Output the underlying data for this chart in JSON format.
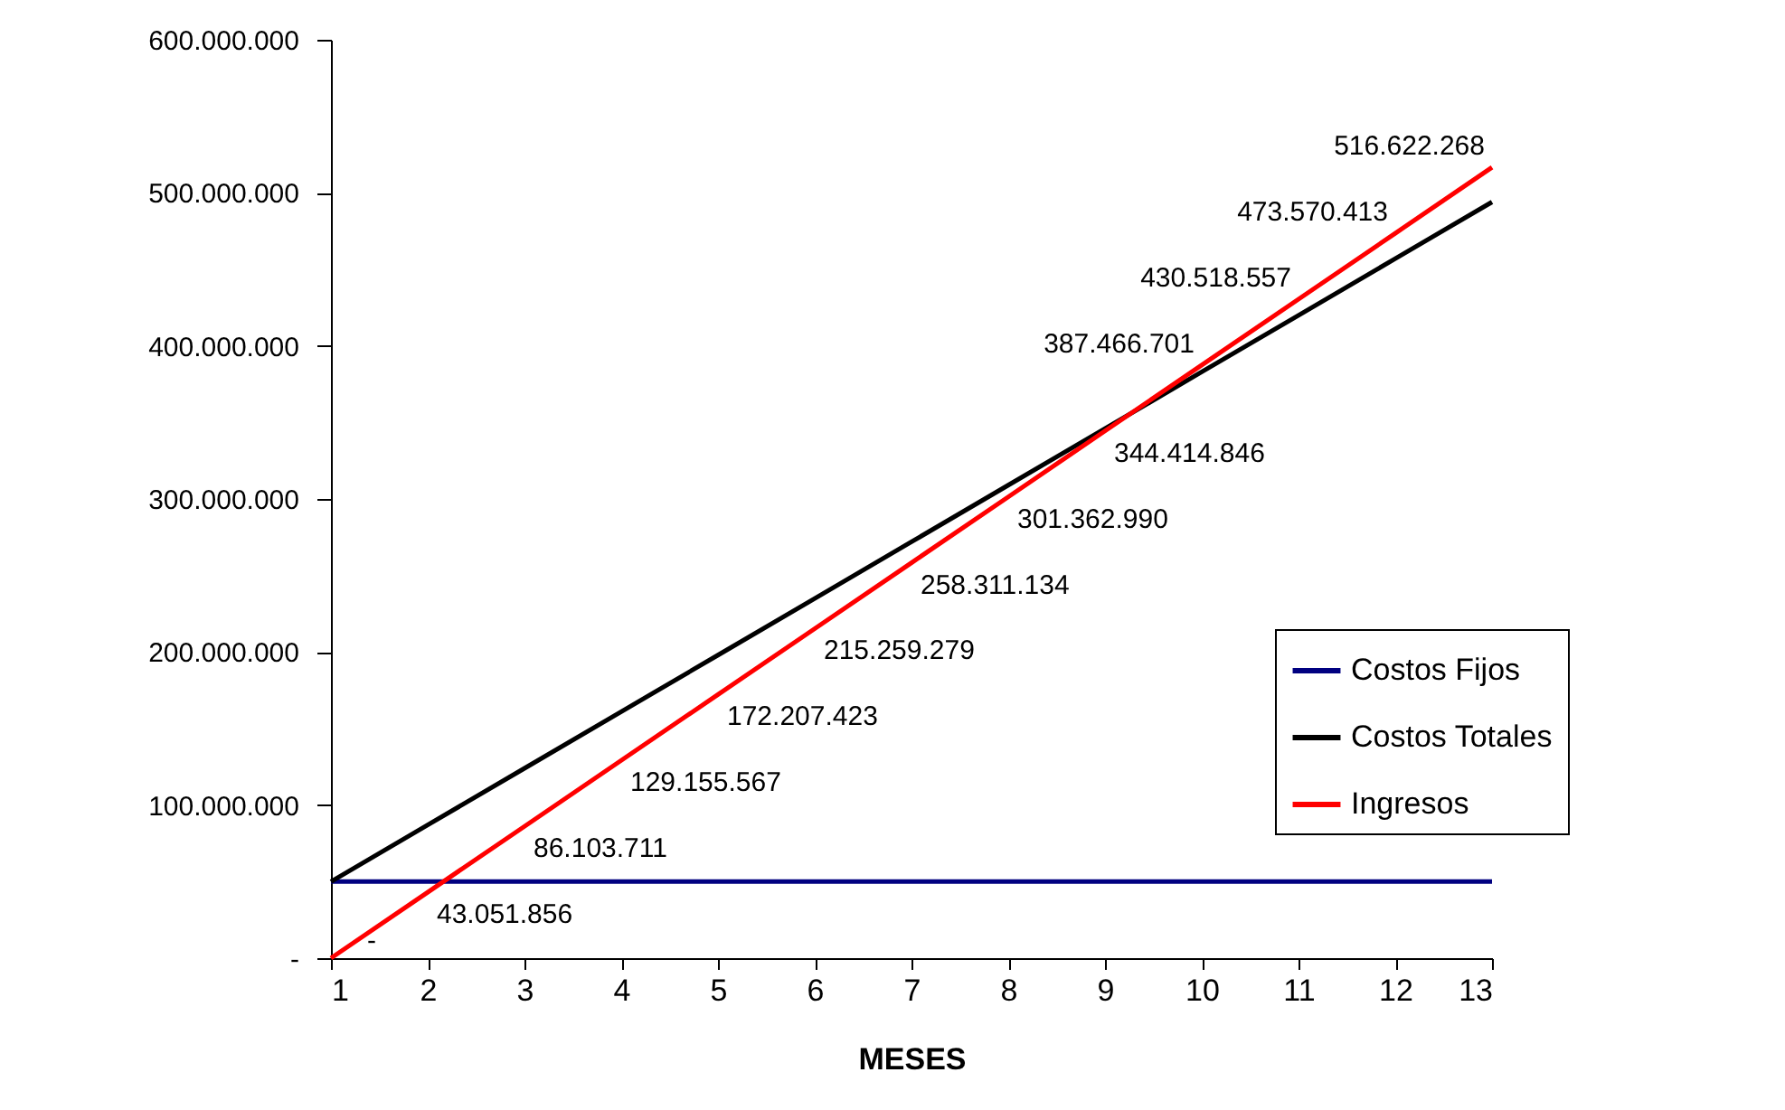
{
  "chart_data": {
    "type": "line",
    "xlabel": "MESES",
    "x": [
      1,
      2,
      3,
      4,
      5,
      6,
      7,
      8,
      9,
      10,
      11,
      12,
      13
    ],
    "xlim": [
      1,
      13
    ],
    "xticks": [
      1,
      2,
      3,
      4,
      5,
      6,
      7,
      8,
      9,
      10,
      11,
      12,
      13
    ],
    "ylim": [
      0,
      600000000
    ],
    "yticks": [
      {
        "value": 0,
        "label": "-"
      },
      {
        "value": 100000000,
        "label": "100.000.000"
      },
      {
        "value": 200000000,
        "label": "200.000.000"
      },
      {
        "value": 300000000,
        "label": "300.000.000"
      },
      {
        "value": 400000000,
        "label": "400.000.000"
      },
      {
        "value": 500000000,
        "label": "500.000.000"
      },
      {
        "value": 600000000,
        "label": "600.000.000"
      }
    ],
    "series": [
      {
        "name": "Costos Fijos",
        "color": "#000080",
        "values": [
          50000000,
          50000000,
          50000000,
          50000000,
          50000000,
          50000000,
          50000000,
          50000000,
          50000000,
          50000000,
          50000000,
          50000000,
          50000000
        ]
      },
      {
        "name": "Costos Totales",
        "color": "#000000",
        "values": [
          50000000,
          87000000,
          124000000,
          161000000,
          198000000,
          235000000,
          272000000,
          309000000,
          346000000,
          383000000,
          420000000,
          457000000,
          494000000
        ]
      },
      {
        "name": "Ingresos",
        "color": "#ff0000",
        "values": [
          0,
          43051856,
          86103711,
          129155567,
          172207423,
          215259279,
          258311134,
          301362990,
          344414846,
          387466701,
          430518557,
          473570413,
          516622268
        ],
        "value_labels": [
          "-",
          "43.051.856",
          "86.103.711",
          "129.155.567",
          "172.207.423",
          "215.259.279",
          "258.311.134",
          "301.362.990",
          "344.414.846",
          "387.466.701",
          "430.518.557",
          "473.570.413",
          "516.622.268"
        ]
      }
    ],
    "legend": "bottom right",
    "grid": false,
    "marker": "none",
    "line_style": "solid"
  }
}
